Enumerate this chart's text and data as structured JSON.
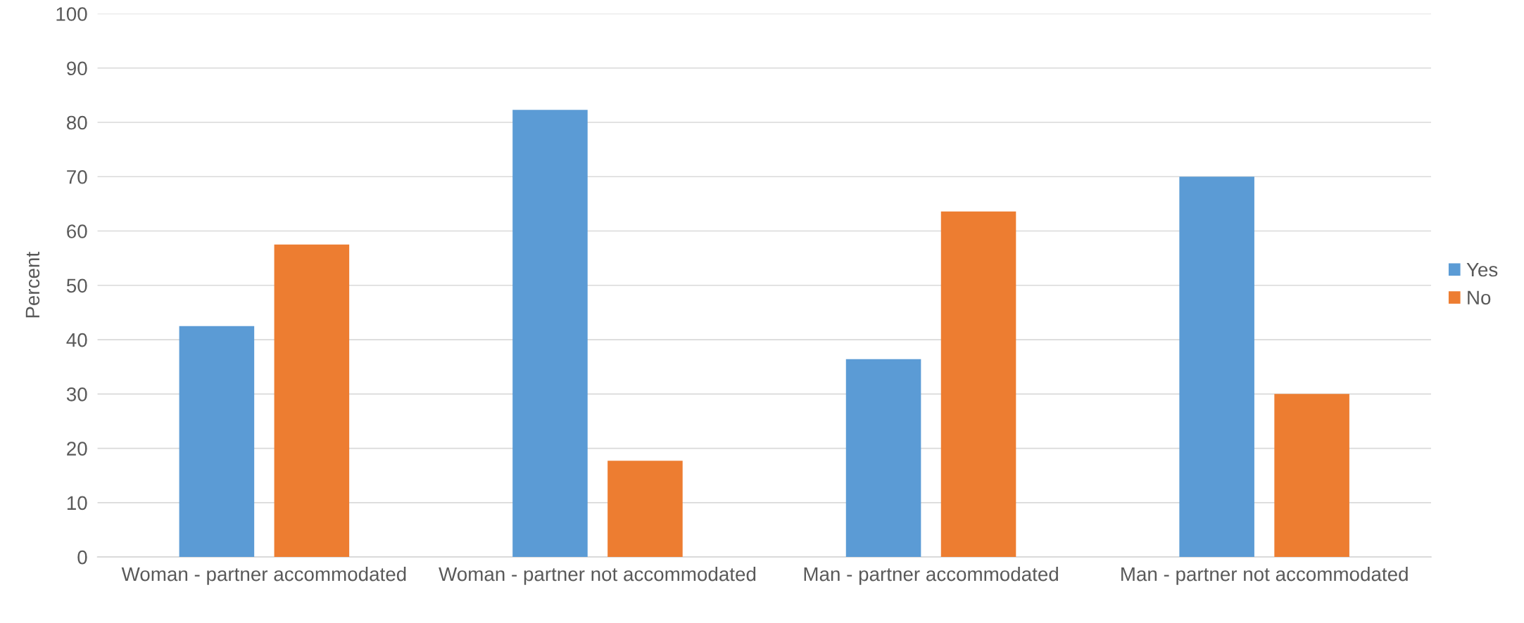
{
  "chart_data": {
    "type": "bar",
    "ylabel": "Percent",
    "categories": [
      "Woman - partner accommodated",
      "Woman - partner not accommodated",
      "Man - partner accommodated",
      "Man - partner not accommodated"
    ],
    "series": [
      {
        "name": "Yes",
        "color": "#5b9bd5",
        "values": [
          42.5,
          82.3,
          36.4,
          70.0
        ]
      },
      {
        "name": "No",
        "color": "#ed7d31",
        "values": [
          57.5,
          17.7,
          63.6,
          30.0
        ]
      }
    ],
    "ylim": [
      0,
      100
    ],
    "yticks": [
      0,
      10,
      20,
      30,
      40,
      50,
      60,
      70,
      80,
      90,
      100
    ],
    "grid": "y",
    "legend": "right"
  }
}
